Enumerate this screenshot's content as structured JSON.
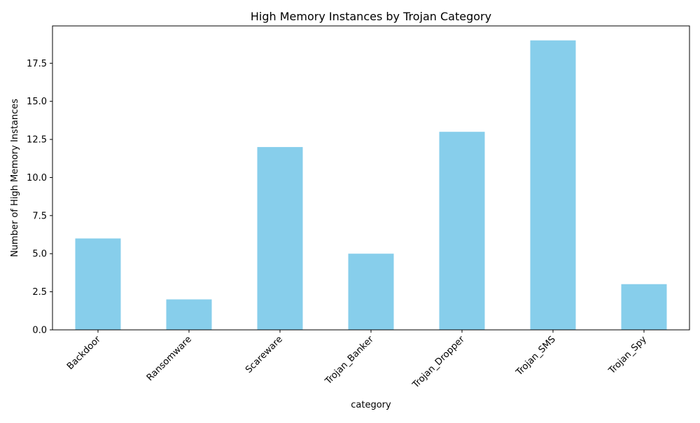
{
  "chart_data": {
    "type": "bar",
    "title": "High Memory Instances by Trojan Category",
    "xlabel": "category",
    "ylabel": "Number of High Memory Instances",
    "categories": [
      "Backdoor",
      "Ransomware",
      "Scareware",
      "Trojan_Banker",
      "Trojan_Dropper",
      "Trojan_SMS",
      "Trojan_Spy"
    ],
    "values": [
      6,
      2,
      12,
      5,
      13,
      19,
      3
    ],
    "ylim": [
      0,
      19.95
    ],
    "yticks": [
      "0.0",
      "2.5",
      "5.0",
      "7.5",
      "10.0",
      "12.5",
      "15.0",
      "17.5"
    ],
    "bar_color": "#87ceeb",
    "grid": false,
    "legend": "none"
  }
}
